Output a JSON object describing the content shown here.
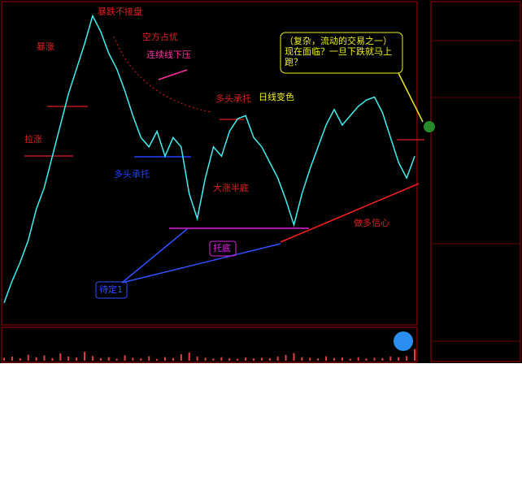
{
  "chart_data": {
    "type": "line",
    "color": "#3ff0f0",
    "ylim": [
      0,
      100
    ],
    "values": [
      5,
      12,
      18,
      25,
      35,
      42,
      52,
      62,
      72,
      80,
      88,
      97,
      92,
      85,
      80,
      73,
      65,
      58,
      55,
      60,
      52,
      58,
      55,
      40,
      32,
      45,
      55,
      52,
      60,
      64,
      65,
      58,
      55,
      50,
      45,
      38,
      30,
      40,
      48,
      55,
      62,
      67,
      62,
      65,
      68,
      70,
      71,
      66,
      58,
      50,
      45,
      52
    ],
    "volume": {
      "color": "#e04040",
      "ylim": [
        0,
        100
      ],
      "values": [
        10,
        14,
        8,
        20,
        12,
        18,
        9,
        25,
        14,
        11,
        30,
        16,
        9,
        12,
        7,
        18,
        10,
        8,
        15,
        6,
        12,
        9,
        22,
        28,
        14,
        10,
        8,
        12,
        9,
        7,
        11,
        8,
        10,
        9,
        14,
        20,
        26,
        12,
        10,
        8,
        15,
        9,
        11,
        7,
        12,
        8,
        10,
        9,
        14,
        12,
        16,
        40
      ]
    },
    "annotations": [
      "暴跌不接盘",
      "空方占优",
      "连续线下压",
      "暴涨",
      "拉涨",
      "多头承托",
      "日线变色",
      "多头承托",
      "大涨半底",
      "托底",
      "待定1",
      "做多信心"
    ],
    "callout": "（复杂，流动的交易之一）现在面临？一旦下跌就马上跑？"
  }
}
